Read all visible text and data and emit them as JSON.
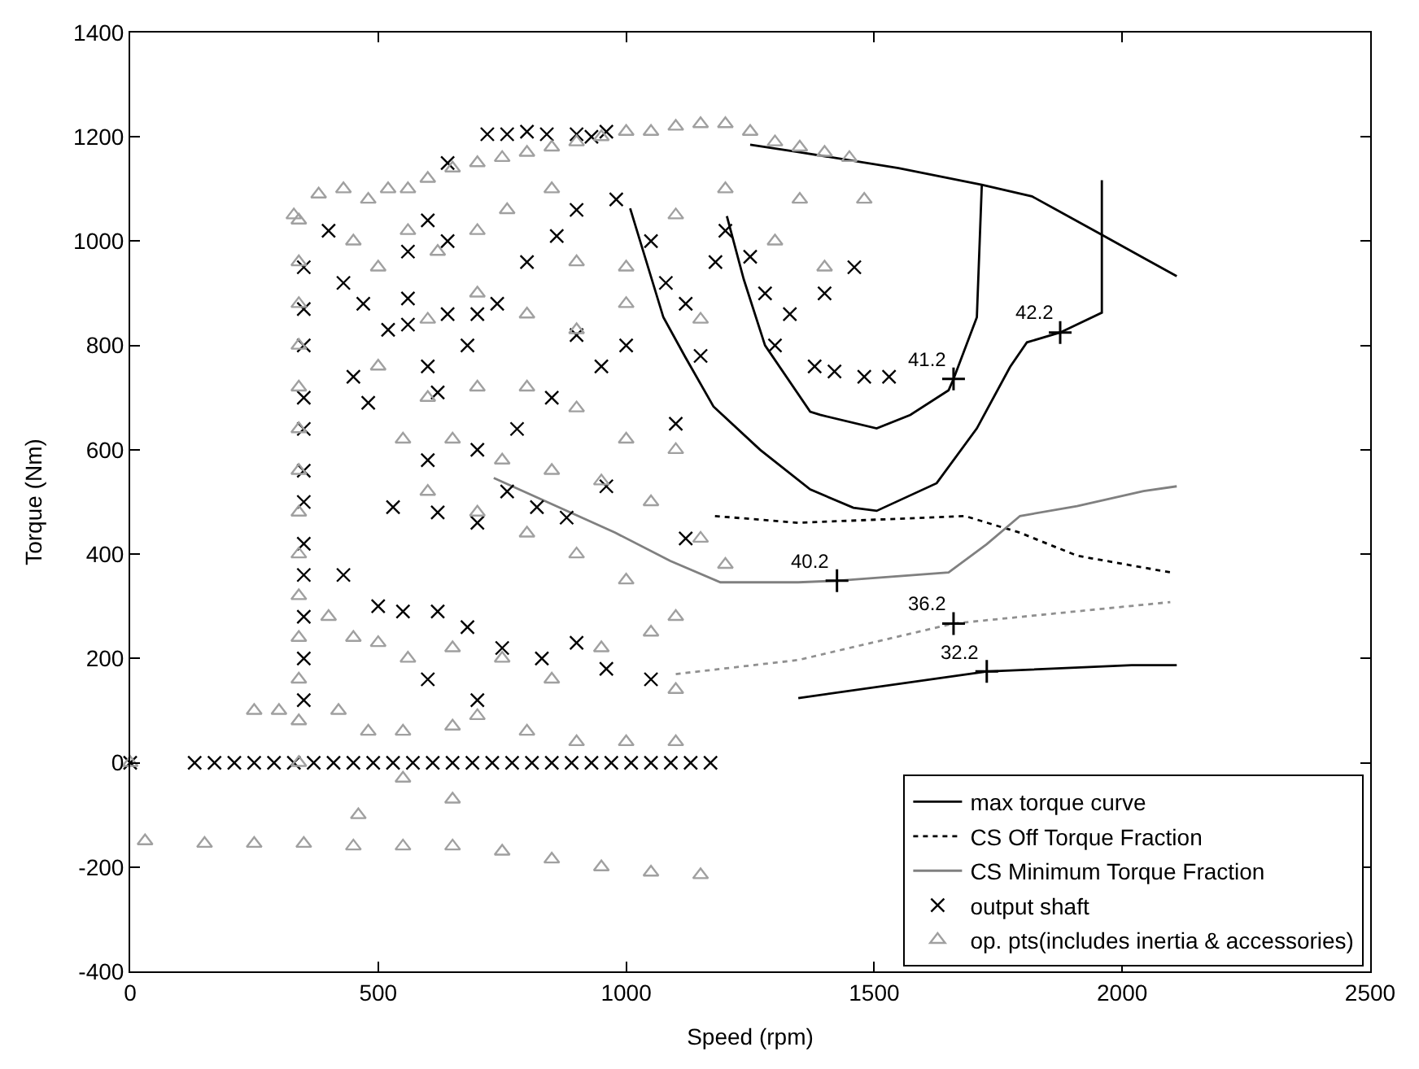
{
  "chart_data": {
    "type": "line",
    "xlabel": "Speed (rpm)",
    "ylabel": "Torque (Nm)",
    "xlim": [
      0,
      2500
    ],
    "xticks": [
      0,
      500,
      1000,
      1500,
      2000,
      2500
    ],
    "ylim": [
      -400,
      1400
    ],
    "yticks": [
      -400,
      -200,
      0,
      200,
      400,
      600,
      800,
      1000,
      1200,
      1400
    ],
    "grid": false,
    "legend": "bottom right",
    "series": [
      {
        "name": "max torque curve",
        "color": "#000000",
        "line_style": "solid",
        "marker": "none",
        "x": [
          1250,
          1347,
          1549,
          1717,
          1818,
          1952,
          2043,
          2110
        ],
        "values": [
          1185,
          1171,
          1140,
          1108,
          1086,
          1016,
          968,
          933
        ]
      },
      {
        "name": "CS Off Torque Fraction",
        "color": "#000000",
        "line_style": "dotted",
        "marker": "none",
        "x": [
          1179,
          1347,
          1683,
          1794,
          1909,
          2097
        ],
        "values": [
          473,
          460,
          473,
          441,
          397,
          365
        ]
      },
      {
        "name": "CS Minimum Torque Fraction",
        "color": "#808080",
        "line_style": "solid",
        "marker": "none",
        "x": [
          733,
          978,
          1089,
          1190,
          1347,
          1425,
          1650,
          1727,
          1794,
          1909,
          2043,
          2110
        ],
        "values": [
          546,
          441,
          387,
          346,
          346,
          349,
          365,
          419,
          473,
          492,
          521,
          530
        ]
      },
      {
        "name": "output shaft",
        "type": "scatter",
        "color": "#000000",
        "marker": "cross",
        "x": [
          0,
          130,
          170,
          210,
          250,
          290,
          330,
          370,
          410,
          450,
          490,
          530,
          570,
          610,
          650,
          690,
          730,
          770,
          810,
          850,
          890,
          930,
          970,
          1010,
          1050,
          1090,
          1130,
          1170,
          350,
          350,
          350,
          350,
          350,
          350,
          350,
          350,
          350,
          350,
          350,
          350,
          720,
          760,
          800,
          840,
          900,
          930,
          960,
          640,
          400,
          430,
          470,
          560,
          560,
          600,
          640,
          520,
          560,
          640,
          700,
          450,
          480,
          600,
          620,
          680,
          740,
          800,
          860,
          900,
          980,
          1050,
          1080,
          1120,
          1180,
          1200,
          1250,
          1280,
          1330,
          1400,
          1460,
          1300,
          1380,
          1420,
          1480,
          1530,
          1150,
          1100,
          1000,
          950,
          900,
          850,
          780,
          700,
          600,
          530,
          620,
          700,
          760,
          820,
          880,
          960,
          1120,
          430,
          500,
          550,
          620,
          680,
          750,
          830,
          900,
          960,
          1050,
          600,
          700
        ],
        "values": [
          0,
          0,
          0,
          0,
          0,
          0,
          0,
          0,
          0,
          0,
          0,
          0,
          0,
          0,
          0,
          0,
          0,
          0,
          0,
          0,
          0,
          0,
          0,
          0,
          0,
          0,
          0,
          0,
          120,
          200,
          280,
          360,
          420,
          500,
          560,
          640,
          700,
          800,
          870,
          950,
          1205,
          1205,
          1210,
          1205,
          1205,
          1200,
          1210,
          1150,
          1020,
          920,
          880,
          980,
          890,
          1040,
          1000,
          830,
          840,
          860,
          860,
          740,
          690,
          760,
          710,
          800,
          880,
          960,
          1010,
          1060,
          1080,
          1000,
          920,
          880,
          960,
          1020,
          970,
          900,
          860,
          900,
          950,
          800,
          760,
          750,
          740,
          740,
          780,
          650,
          800,
          760,
          820,
          700,
          640,
          600,
          580,
          490,
          480,
          460,
          520,
          490,
          470,
          530,
          430,
          360,
          300,
          290,
          290,
          260,
          220,
          200,
          230,
          180,
          160,
          160,
          120
        ]
      },
      {
        "name": "op. pts(includes inertia & accessories)",
        "type": "scatter",
        "color": "#a0a0a0",
        "marker": "triangle",
        "x": [
          0,
          340,
          340,
          340,
          340,
          340,
          340,
          340,
          340,
          340,
          340,
          340,
          340,
          340,
          340,
          330,
          380,
          430,
          480,
          520,
          560,
          600,
          650,
          700,
          750,
          800,
          850,
          900,
          950,
          1000,
          1050,
          1100,
          1150,
          1200,
          1250,
          1300,
          1350,
          1400,
          1450,
          1480,
          1350,
          450,
          500,
          560,
          620,
          700,
          760,
          850,
          900,
          1000,
          1100,
          1200,
          1300,
          1400,
          600,
          700,
          800,
          900,
          1000,
          1150,
          500,
          600,
          700,
          800,
          900,
          1000,
          1100,
          550,
          650,
          750,
          850,
          950,
          1050,
          1150,
          1200,
          600,
          700,
          800,
          900,
          1000,
          1100,
          400,
          450,
          500,
          560,
          650,
          750,
          850,
          950,
          1050,
          1100,
          250,
          300,
          420,
          480,
          550,
          650,
          700,
          800,
          900,
          1000,
          1100,
          550,
          650,
          460,
          30,
          150,
          250,
          350,
          450,
          550,
          650,
          750,
          850,
          950,
          1050,
          1150
        ],
        "values": [
          0,
          0,
          80,
          160,
          240,
          320,
          400,
          480,
          560,
          640,
          720,
          800,
          880,
          960,
          1040,
          1050,
          1090,
          1100,
          1080,
          1100,
          1100,
          1120,
          1140,
          1150,
          1160,
          1170,
          1180,
          1190,
          1200,
          1210,
          1210,
          1220,
          1225,
          1225,
          1210,
          1190,
          1180,
          1170,
          1160,
          1080,
          1080,
          1000,
          950,
          1020,
          980,
          1020,
          1060,
          1100,
          960,
          950,
          1050,
          1100,
          1000,
          950,
          850,
          900,
          860,
          830,
          880,
          850,
          760,
          700,
          720,
          720,
          680,
          620,
          600,
          620,
          620,
          580,
          560,
          540,
          500,
          430,
          380,
          520,
          480,
          440,
          400,
          350,
          280,
          280,
          240,
          230,
          200,
          220,
          200,
          160,
          220,
          250,
          140,
          100,
          100,
          100,
          60,
          60,
          70,
          90,
          60,
          40,
          40,
          40,
          -30,
          -70,
          -100,
          -150,
          -155,
          -155,
          -155,
          -160,
          -160,
          -160,
          -170,
          -185,
          -200,
          -210,
          -215
        ]
      },
      {
        "type": "line",
        "color": "#000000",
        "line_style": "solid",
        "marker": "none",
        "x": [
          1203,
          1237,
          1280,
          1371,
          1391,
          1505,
          1573,
          1650,
          1660,
          1707,
          1717
        ],
        "values": [
          1048,
          927,
          800,
          673,
          667,
          641,
          667,
          714,
          736,
          854,
          1108
        ]
      },
      {
        "type": "line",
        "color": "#000000",
        "line_style": "solid",
        "marker": "none",
        "x": [
          1008,
          1075,
          1119,
          1176,
          1270,
          1371,
          1458,
          1505,
          1626,
          1707,
          1774,
          1808,
          1875,
          1959,
          1959
        ],
        "values": [
          1063,
          854,
          778,
          683,
          600,
          524,
          489,
          483,
          536,
          641,
          759,
          806,
          825,
          863,
          1117
        ]
      },
      {
        "type": "line",
        "color": "#909090",
        "line_style": "dotted",
        "marker": "none",
        "x": [
          1100,
          1347,
          1660,
          2097
        ],
        "values": [
          170,
          197,
          267,
          308
        ]
      },
      {
        "type": "line",
        "color": "#000000",
        "line_style": "solid",
        "marker": "none",
        "x": [
          1347,
          1727,
          2019,
          2110
        ],
        "values": [
          124,
          175,
          187,
          187
        ]
      }
    ],
    "annotations": [
      {
        "text": "41.2",
        "x": 1660,
        "y": 736
      },
      {
        "text": "42.2",
        "x": 1875,
        "y": 825
      },
      {
        "text": "40.2",
        "x": 1425,
        "y": 349
      },
      {
        "text": "36.2",
        "x": 1660,
        "y": 267
      },
      {
        "text": "32.2",
        "x": 1727,
        "y": 175
      }
    ]
  }
}
